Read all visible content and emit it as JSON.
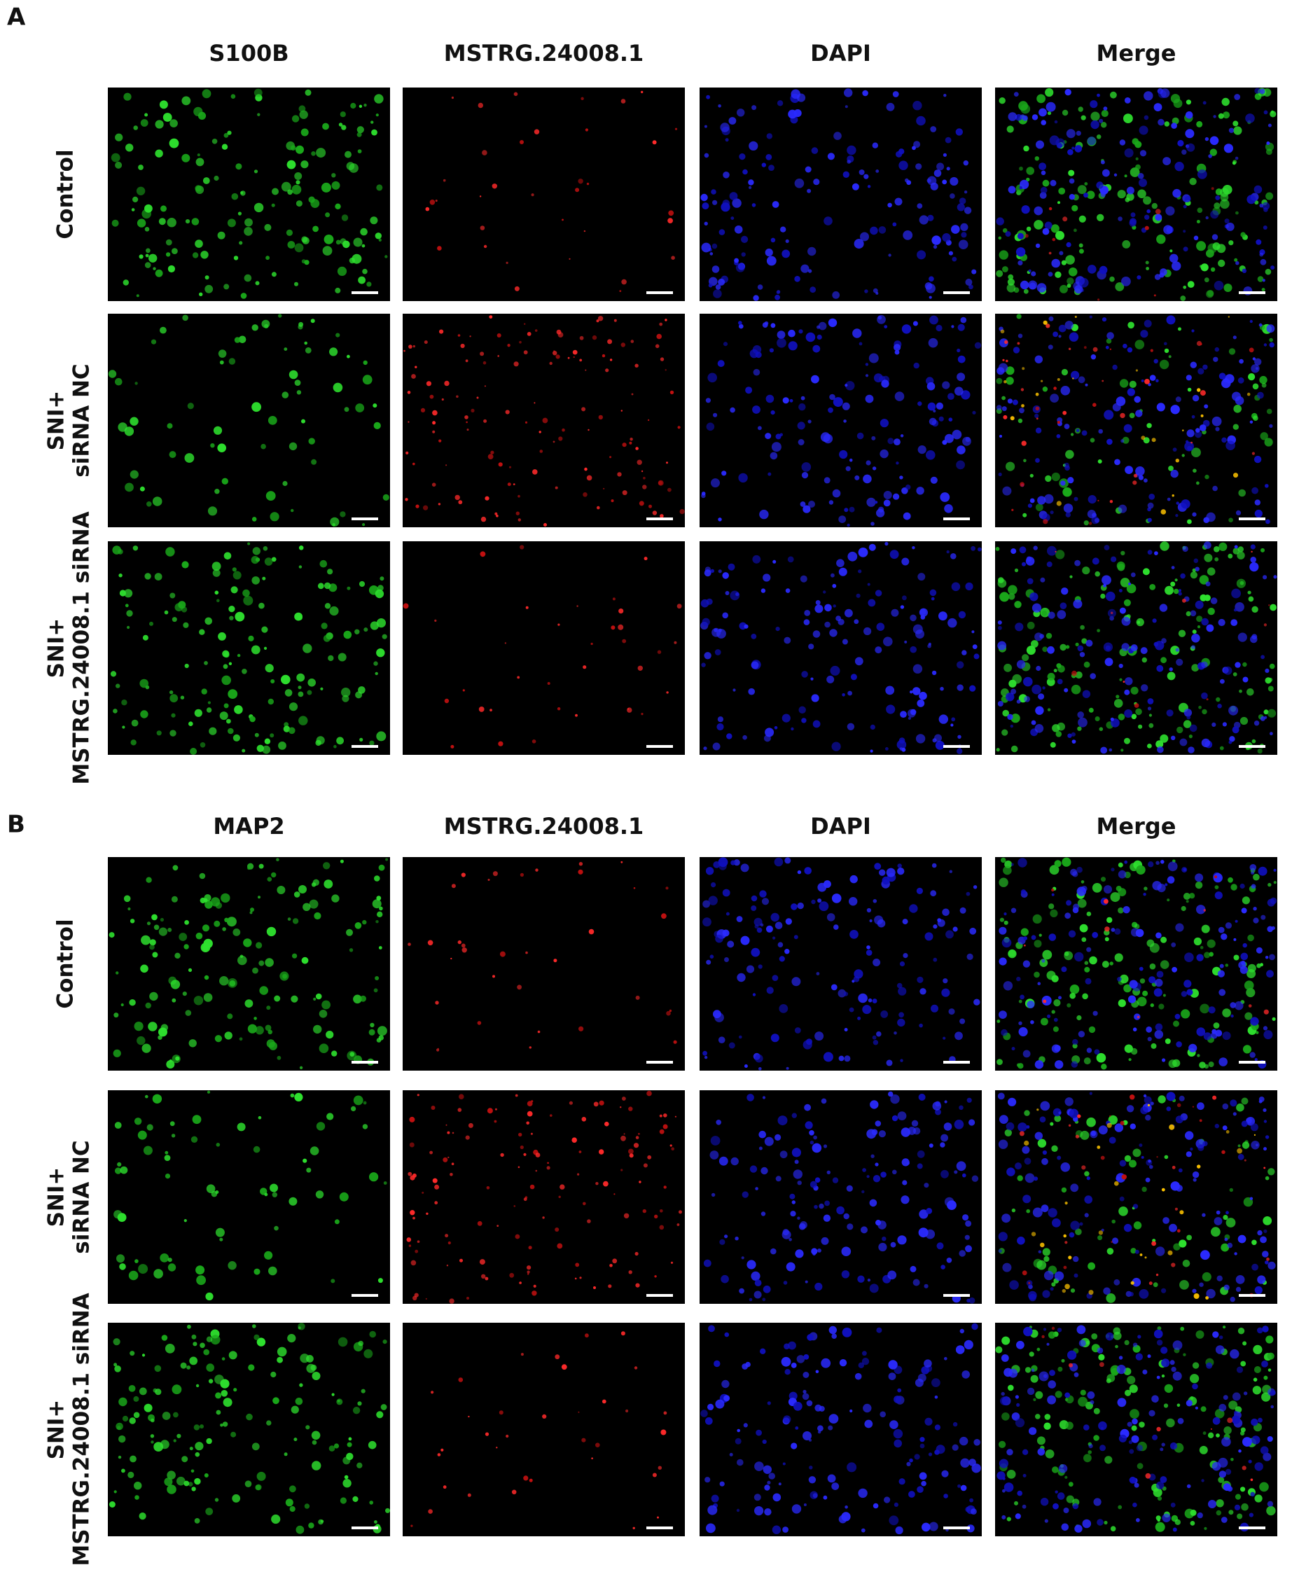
{
  "panels": [
    {
      "label": "A",
      "columns": [
        "S100B",
        "MSTRG.24008.1",
        "DAPI",
        "Merge"
      ],
      "rows": [
        [
          "Control"
        ],
        [
          "SNI+",
          "siRNA NC"
        ],
        [
          "SNI+",
          "MSTRG.24008.1 siRNA"
        ]
      ]
    },
    {
      "label": "B",
      "columns": [
        "MAP2",
        "MSTRG.24008.1",
        "DAPI",
        "Merge"
      ],
      "rows": [
        [
          "Control"
        ],
        [
          "SNI+",
          "siRNA NC"
        ],
        [
          "SNI+",
          "MSTRG.24008.1 siRNA"
        ]
      ]
    }
  ]
}
